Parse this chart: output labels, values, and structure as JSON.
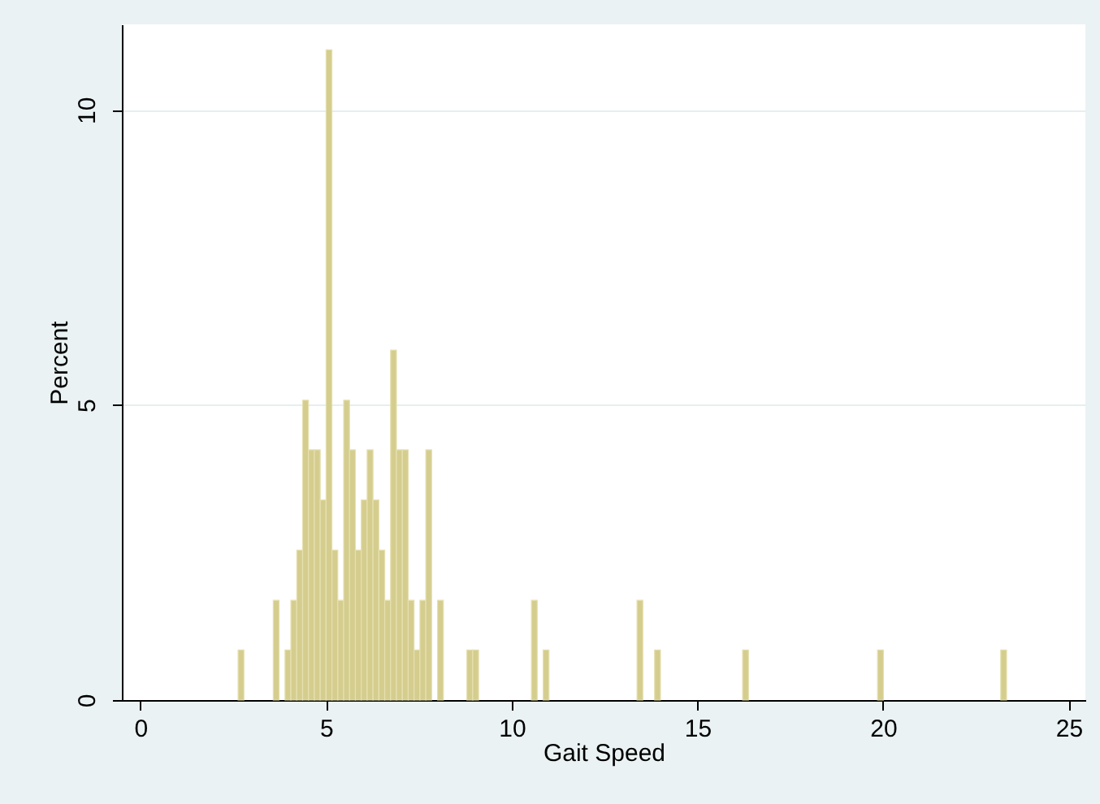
{
  "chart_data": {
    "type": "histogram",
    "xlabel": "Gait Speed",
    "ylabel": "Percent",
    "color": "#d4cd8e",
    "bins": [
      2.63,
      2.788,
      3.578,
      3.736,
      3.894,
      4.052,
      4.21,
      4.368,
      4.526,
      4.684,
      4.842,
      5.0,
      5.158,
      5.316,
      5.474,
      5.632,
      5.79,
      5.948,
      6.106,
      6.264,
      6.422,
      6.58,
      6.738,
      6.896,
      7.054,
      7.212,
      7.37,
      7.528,
      7.686,
      7.844,
      8.002,
      8.16,
      8.792,
      8.95,
      9.108,
      10.53,
      10.688,
      10.846,
      11.004,
      13.374,
      13.532,
      13.848,
      14.006,
      16.218,
      16.376,
      19.852,
      20.01,
      23.17,
      23.328
    ],
    "values": [
      0.85,
      0,
      1.69,
      0,
      0.85,
      1.69,
      2.54,
      5.08,
      4.24,
      4.24,
      3.39,
      11.02,
      2.54,
      1.69,
      5.08,
      4.24,
      2.54,
      3.39,
      4.24,
      3.39,
      2.54,
      1.69,
      5.93,
      4.24,
      4.24,
      1.69,
      0.85,
      1.69,
      4.24,
      0,
      1.69,
      0,
      0.85,
      0.85,
      0,
      1.69,
      0,
      0.85,
      0,
      1.69,
      0,
      0.85,
      0,
      0.85,
      0,
      0.85,
      0,
      0.85
    ],
    "xlim": [
      -0.5,
      25.45
    ],
    "xticks": [
      0,
      5,
      10,
      15,
      20,
      25
    ],
    "ylim": [
      0,
      11.45
    ],
    "yticks": [
      0,
      5,
      10
    ],
    "grid": "y"
  }
}
